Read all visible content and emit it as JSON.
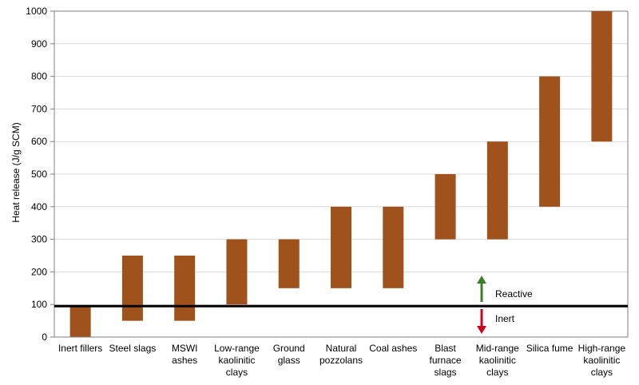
{
  "chart_data": {
    "type": "bar",
    "subtype": "floating-range",
    "ylabel": "Heat release (J/g SCM)",
    "ylim": [
      0,
      1000
    ],
    "yticks": [
      0,
      100,
      200,
      300,
      400,
      500,
      600,
      700,
      800,
      900,
      1000
    ],
    "grid": "horizontal",
    "bar_color": "#A0521D",
    "categories": [
      [
        "Inert fillers"
      ],
      [
        "Steel slags"
      ],
      [
        "MSWI",
        "ashes"
      ],
      [
        "Low-range",
        "kaolinitic",
        "clays"
      ],
      [
        "Ground",
        "glass"
      ],
      [
        "Natural",
        "pozzolans"
      ],
      [
        "Coal ashes"
      ],
      [
        "Blast",
        "furnace",
        "slags"
      ],
      [
        "Mid-range",
        "kaolinitic",
        "clays"
      ],
      [
        "Silica fume"
      ],
      [
        "High-range",
        "kaolinitic",
        "clays"
      ]
    ],
    "ranges": [
      [
        0,
        95
      ],
      [
        50,
        250
      ],
      [
        50,
        250
      ],
      [
        100,
        300
      ],
      [
        150,
        300
      ],
      [
        150,
        400
      ],
      [
        150,
        400
      ],
      [
        300,
        500
      ],
      [
        300,
        600
      ],
      [
        400,
        800
      ],
      [
        600,
        1000
      ]
    ],
    "threshold": 95,
    "annotations": {
      "reactive": {
        "label": "Reactive",
        "arrow_color": "#3E7D2A"
      },
      "inert": {
        "label": "Inert",
        "arrow_color": "#D0021B"
      }
    }
  }
}
